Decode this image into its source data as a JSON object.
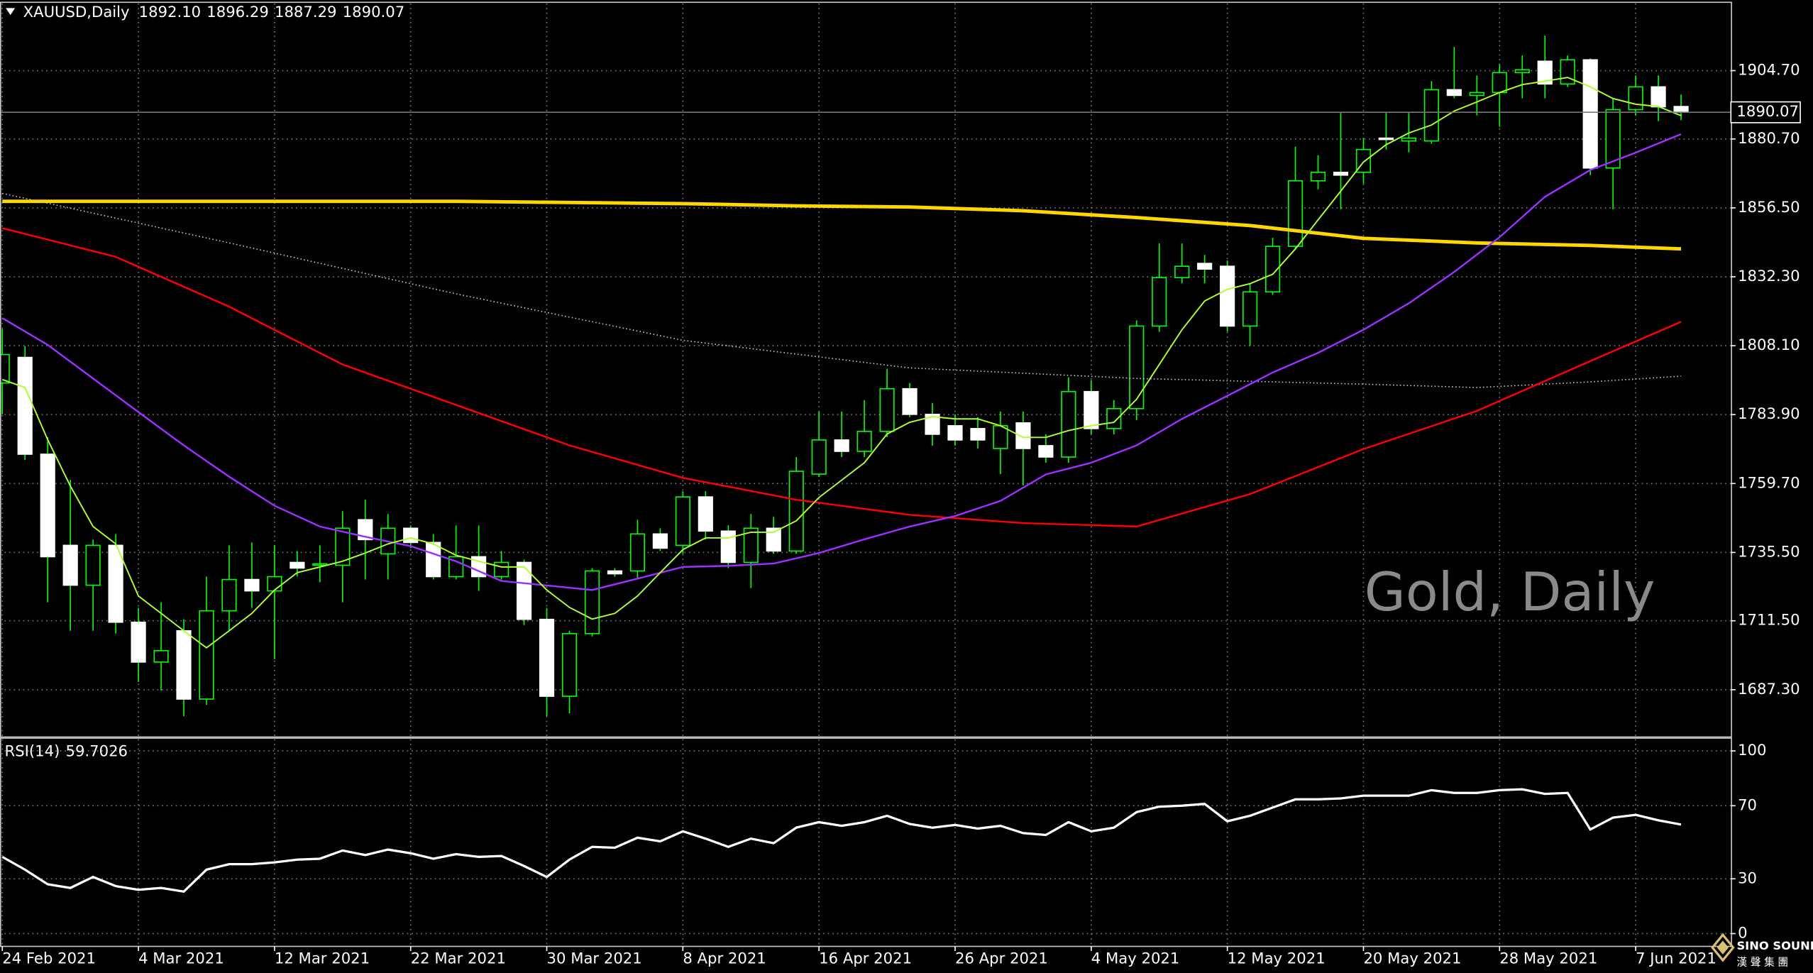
{
  "chart_data": {
    "type": "candlestick",
    "symbol": "XAUUSD,Daily",
    "header_values": [
      {
        "value": 1892.1,
        "label": "1892.10"
      },
      1896.29,
      1887.29,
      1890.07
    ],
    "watermark": "Gold, Daily",
    "categories": [
      "24 Feb 2021",
      null,
      null,
      null,
      null,
      null,
      "4 Mar 2021",
      null,
      null,
      null,
      null,
      null,
      "12 Mar 2021",
      null,
      null,
      null,
      null,
      null,
      "22 Mar 2021",
      null,
      null,
      null,
      null,
      null,
      "30 Mar 2021",
      null,
      null,
      null,
      null,
      null,
      "8 Apr 2021",
      null,
      null,
      null,
      null,
      null,
      "16 Apr 2021",
      null,
      null,
      null,
      null,
      null,
      "26 Apr 2021",
      null,
      null,
      null,
      null,
      null,
      "4 May 2021",
      null,
      null,
      null,
      null,
      null,
      "12 May 2021",
      null,
      null,
      null,
      null,
      null,
      "20 May 2021",
      null,
      null,
      null,
      null,
      null,
      "28 May 2021",
      null,
      null,
      null,
      null,
      null,
      "7 Jun 2021",
      null,
      null
    ],
    "open": [
      1795,
      1804,
      1770,
      1738,
      1724,
      1738,
      1711,
      1697,
      1708,
      1684,
      1715,
      1726,
      1722,
      1732,
      1731,
      1731,
      1747,
      1735,
      1744,
      1739,
      1727,
      1734,
      1727,
      1732,
      1712,
      1685,
      1707,
      1729,
      1729,
      1742,
      1738,
      1755,
      1743,
      1732,
      1744,
      1736,
      1763,
      1775,
      1771,
      1778,
      1793,
      1784,
      1780,
      1779,
      1772,
      1781,
      1773,
      1769,
      1792,
      1779,
      1786,
      1815,
      1832,
      1837,
      1836,
      1815,
      1827,
      1843,
      1866,
      1869,
      1869,
      1881,
      1880,
      1880,
      1898,
      1896,
      1897,
      1904,
      1908,
      1900,
      1908.5,
      1870.5,
      1891,
      1899,
      1892.1
    ],
    "high": [
      1814,
      1808,
      1776,
      1761,
      1740,
      1742,
      1716,
      1718,
      1712,
      1727,
      1738,
      1739,
      1738,
      1736,
      1738,
      1750,
      1754,
      1749,
      1745,
      1742,
      1745,
      1745,
      1736,
      1733,
      1716,
      1708,
      1730,
      1730,
      1747,
      1744,
      1757,
      1757,
      1745,
      1749,
      1748,
      1769,
      1785,
      1785,
      1789,
      1800,
      1795,
      1788,
      1784,
      1783,
      1785,
      1785,
      1777,
      1797,
      1796,
      1789,
      1817,
      1844,
      1844,
      1840,
      1838,
      1830,
      1846,
      1878,
      1875,
      1890,
      1881,
      1890,
      1890,
      1901,
      1913,
      1903,
      1907,
      1910,
      1917,
      1910,
      1909,
      1895,
      1903,
      1903,
      1896.29
    ],
    "low": [
      1784,
      1768,
      1718,
      1708,
      1708,
      1707,
      1690,
      1687,
      1678,
      1682,
      1708,
      1716,
      1698,
      1727,
      1725,
      1718,
      1726,
      1726,
      1737,
      1726,
      1726,
      1722,
      1726,
      1710,
      1678,
      1679,
      1706,
      1727,
      1726,
      1736,
      1735,
      1740,
      1730,
      1723,
      1735,
      1735,
      1762,
      1769,
      1769,
      1776,
      1783,
      1773,
      1773,
      1772,
      1763,
      1759,
      1767,
      1767,
      1777,
      1777,
      1782,
      1813,
      1830,
      1830,
      1813,
      1808,
      1826,
      1842,
      1863,
      1856,
      1865,
      1877,
      1876,
      1879,
      1895,
      1889,
      1885,
      1895,
      1895,
      1899,
      1868,
      1856,
      1889,
      1887,
      1887.29
    ],
    "close": [
      1805,
      1770,
      1734,
      1724,
      1738,
      1711,
      1697,
      1701,
      1684,
      1715,
      1726,
      1722,
      1727,
      1730,
      1731.5,
      1744,
      1740,
      1744,
      1739,
      1727,
      1734,
      1727,
      1732,
      1712,
      1685,
      1707,
      1729,
      1728,
      1742,
      1737,
      1755,
      1743,
      1732,
      1744,
      1736,
      1764,
      1775,
      1771,
      1778,
      1793,
      1784,
      1777,
      1775,
      1775,
      1780,
      1772,
      1769,
      1792,
      1779,
      1786,
      1815,
      1832,
      1836,
      1835,
      1815,
      1827,
      1843,
      1866,
      1869,
      1868,
      1877,
      1880.5,
      1881,
      1898,
      1896,
      1897,
      1904,
      1905,
      1900,
      1908.5,
      1870.5,
      1891,
      1899,
      1892,
      1890.07
    ],
    "up_color": "#000000",
    "down_color": "#ffffff",
    "wick_color": "#00ff00",
    "ylim": [
      1671.1,
      1929.5
    ],
    "yticks": [
      {
        "value": 1904.7,
        "label": "1904.70"
      },
      {
        "value": 1880.7,
        "label": "1880.70"
      },
      {
        "value": 1856.5,
        "label": "1856.50"
      },
      {
        "value": 1832.3,
        "label": "1832.30"
      },
      {
        "value": 1808.1,
        "label": "1808.10"
      },
      {
        "value": 1783.9,
        "label": "1783.90"
      },
      {
        "value": 1759.7,
        "label": "1759.70"
      },
      {
        "value": 1735.5,
        "label": "1735.50"
      },
      {
        "value": 1711.5,
        "label": "1711.50"
      },
      {
        "value": 1687.3,
        "label": "1687.30"
      }
    ],
    "grid": true,
    "last_price": 1890.07,
    "moving_averages": [
      {
        "color": "#ffd700",
        "x": [
          0,
          10,
          20,
          25,
          30,
          35,
          40,
          45,
          50,
          55,
          60,
          65,
          70,
          74
        ],
        "values": [
          1858.8,
          1858.8,
          1858.8,
          1858.4,
          1858.0,
          1857.2,
          1856.8,
          1855.5,
          1853.1,
          1850.3,
          1845.8,
          1844.2,
          1843.3,
          1842.1
        ]
      },
      {
        "color": "#c0c0c0",
        "dash": "dotted",
        "x": [
          0,
          10,
          20,
          30,
          40,
          50,
          60,
          65,
          70,
          74
        ],
        "values": [
          1861.6,
          1844.2,
          1826.3,
          1810.0,
          1800.3,
          1796.6,
          1794.6,
          1793.4,
          1795.4,
          1797.4
        ]
      },
      {
        "color": "#ff0000",
        "x": [
          0,
          5,
          10,
          15,
          20,
          25,
          30,
          35,
          40,
          45,
          50,
          55,
          60,
          65,
          70,
          74
        ],
        "values": [
          1849.4,
          1839.3,
          1821.8,
          1801.5,
          1787.3,
          1773.1,
          1761.7,
          1754.0,
          1748.7,
          1745.8,
          1744.6,
          1756.0,
          1771.8,
          1785.2,
          1802.7,
          1816.5
        ]
      },
      {
        "color": "#9b30ff",
        "x": [
          0,
          2,
          4,
          6,
          8,
          10,
          12,
          14,
          16,
          18,
          20,
          22,
          24,
          26,
          28,
          30,
          32,
          34,
          36,
          38,
          40,
          42,
          44,
          46,
          48,
          50,
          52,
          54,
          56,
          58,
          60,
          62,
          64,
          66,
          68,
          70,
          72,
          74
        ],
        "values": [
          1817.8,
          1808.4,
          1796.6,
          1784.8,
          1773.1,
          1762.1,
          1751.9,
          1744.6,
          1741.0,
          1737.7,
          1732.4,
          1725.5,
          1723.9,
          1722.3,
          1726.3,
          1730.4,
          1730.8,
          1731.6,
          1735.3,
          1740.1,
          1744.6,
          1748.3,
          1753.6,
          1762.9,
          1767.0,
          1773.1,
          1782.4,
          1790.5,
          1798.7,
          1805.6,
          1813.7,
          1823.0,
          1834.0,
          1846.2,
          1860.4,
          1869.8,
          1875.9,
          1882.4
        ]
      },
      {
        "color": "#adff2f",
        "x": [
          0,
          1,
          2,
          3,
          4,
          5,
          6,
          7,
          8,
          9,
          10,
          11,
          12,
          13,
          14,
          15,
          16,
          17,
          18,
          19,
          20,
          21,
          22,
          23,
          24,
          25,
          26,
          27,
          28,
          29,
          30,
          31,
          32,
          33,
          34,
          35,
          36,
          37,
          38,
          39,
          40,
          41,
          42,
          43,
          44,
          45,
          46,
          47,
          48,
          49,
          50,
          51,
          52,
          53,
          54,
          55,
          56,
          57,
          58,
          59,
          60,
          61,
          62,
          63,
          64,
          65,
          66,
          67,
          68,
          69,
          70,
          71,
          72,
          73,
          74
        ],
        "values": [
          1796.2,
          1793.4,
          1775.1,
          1758.8,
          1744.6,
          1738.5,
          1720.2,
          1714.1,
          1708.0,
          1702.0,
          1708.0,
          1714.1,
          1722.3,
          1728.4,
          1730.4,
          1732.4,
          1735.3,
          1738.5,
          1740.6,
          1738.5,
          1734.5,
          1732.4,
          1730.4,
          1730.4,
          1722.3,
          1716.2,
          1712.1,
          1714.1,
          1720.2,
          1728.4,
          1736.5,
          1740.6,
          1740.6,
          1742.6,
          1742.6,
          1746.6,
          1754.8,
          1760.9,
          1767.0,
          1777.1,
          1781.2,
          1783.2,
          1782.4,
          1782.4,
          1780.0,
          1775.9,
          1775.9,
          1778.3,
          1780.0,
          1781.2,
          1789.3,
          1801.5,
          1813.7,
          1823.8,
          1827.9,
          1829.9,
          1833.2,
          1842.1,
          1852.3,
          1862.4,
          1872.6,
          1878.7,
          1882.8,
          1885.6,
          1890.5,
          1893.7,
          1897.0,
          1899.8,
          1901.0,
          1902.3,
          1899.0,
          1894.9,
          1892.9,
          1892.1,
          1888.9
        ]
      }
    ],
    "rsi": {
      "title": "RSI(14)",
      "value": 59.7026,
      "color": "#ffffff",
      "ylim": [
        -7,
        107
      ],
      "yticks": [
        100,
        70,
        30,
        0
      ],
      "values": [
        42,
        35,
        27,
        25,
        31,
        26,
        24,
        25,
        23,
        35,
        38,
        38,
        39,
        40.5,
        41,
        45.5,
        43,
        46,
        44,
        41,
        43.5,
        42,
        42.5,
        37,
        31,
        40.5,
        47.5,
        47,
        52.5,
        50.5,
        56,
        52,
        47.5,
        52,
        49.5,
        58,
        61,
        59,
        61,
        64.5,
        60,
        58,
        59.5,
        57.5,
        59,
        55,
        54,
        61,
        56,
        58,
        66.5,
        69.5,
        70,
        71,
        61.5,
        64.5,
        69,
        73.5,
        73.5,
        74,
        75.5,
        75.5,
        75.5,
        78.5,
        77,
        77,
        78.5,
        79,
        76.5,
        77,
        57,
        63.5,
        65,
        62,
        59.7026
      ]
    }
  },
  "logo": {
    "name": "SINO SOUND",
    "subtitle": "漢 聲 集 團"
  }
}
